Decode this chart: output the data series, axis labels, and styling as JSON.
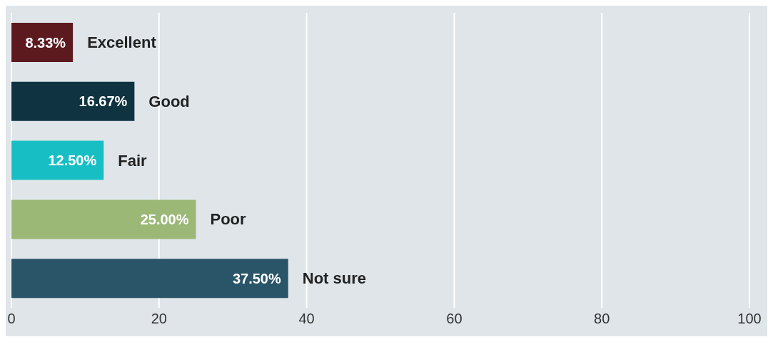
{
  "chart_data": {
    "type": "bar",
    "orientation": "horizontal",
    "categories": [
      "Excellent",
      "Good",
      "Fair",
      "Poor",
      "Not sure"
    ],
    "values": [
      8.33,
      16.67,
      12.5,
      25,
      37.5
    ],
    "value_labels": [
      "8.33%",
      "16.67%",
      "12.50%",
      "25.00%",
      "37.50%"
    ],
    "colors": [
      "#5c1a1f",
      "#0f3340",
      "#17bfc4",
      "#9bb876",
      "#2a5468"
    ],
    "xlim": [
      0,
      100
    ],
    "xticks": [
      0,
      20,
      40,
      60,
      80,
      100
    ],
    "grid": "x"
  }
}
